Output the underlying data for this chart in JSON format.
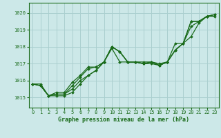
{
  "title": "Graphe pression niveau de la mer (hPa)",
  "bg_color": "#cce8e8",
  "grid_color": "#aacfcf",
  "line_color": "#1a6b1a",
  "spine_color": "#1a6b1a",
  "xlim": [
    -0.5,
    23.5
  ],
  "ylim": [
    1014.4,
    1020.6
  ],
  "yticks": [
    1015,
    1016,
    1017,
    1018,
    1019,
    1020
  ],
  "xticks": [
    0,
    1,
    2,
    3,
    4,
    5,
    6,
    7,
    8,
    9,
    10,
    11,
    12,
    13,
    14,
    15,
    16,
    17,
    18,
    19,
    20,
    21,
    22,
    23
  ],
  "series": [
    [
      1015.8,
      1015.8,
      1015.1,
      1015.1,
      1015.1,
      1015.3,
      1015.8,
      1016.3,
      1016.6,
      1017.1,
      1017.9,
      1017.1,
      1017.1,
      1017.1,
      1017.1,
      1017.1,
      1017.0,
      1017.1,
      1017.8,
      1018.2,
      1018.6,
      1019.4,
      1019.8,
      1019.8
    ],
    [
      1015.8,
      1015.7,
      1015.1,
      1015.2,
      1015.2,
      1015.5,
      1016.0,
      1016.3,
      1016.6,
      1017.1,
      1018.0,
      1017.7,
      1017.1,
      1017.1,
      1017.0,
      1017.0,
      1016.9,
      1017.1,
      1018.2,
      1018.2,
      1019.2,
      1019.5,
      1019.8,
      1019.9
    ],
    [
      1015.8,
      1015.7,
      1015.1,
      1015.2,
      1015.2,
      1015.7,
      1016.2,
      1016.7,
      1016.8,
      1017.1,
      1018.0,
      1017.7,
      1017.1,
      1017.1,
      1017.0,
      1017.1,
      1016.9,
      1017.1,
      1017.8,
      1018.2,
      1019.5,
      1019.5,
      1019.8,
      1019.9
    ],
    [
      1015.8,
      1015.7,
      1015.1,
      1015.3,
      1015.3,
      1015.9,
      1016.3,
      1016.8,
      1016.8,
      1017.1,
      1018.0,
      1017.7,
      1017.1,
      1017.1,
      1017.0,
      1017.1,
      1016.9,
      1017.1,
      1017.8,
      1018.2,
      1019.5,
      1019.5,
      1019.8,
      1019.9
    ]
  ],
  "tick_fontsize": 5,
  "label_fontsize": 6,
  "linewidth": 0.9,
  "markersize": 2.0
}
